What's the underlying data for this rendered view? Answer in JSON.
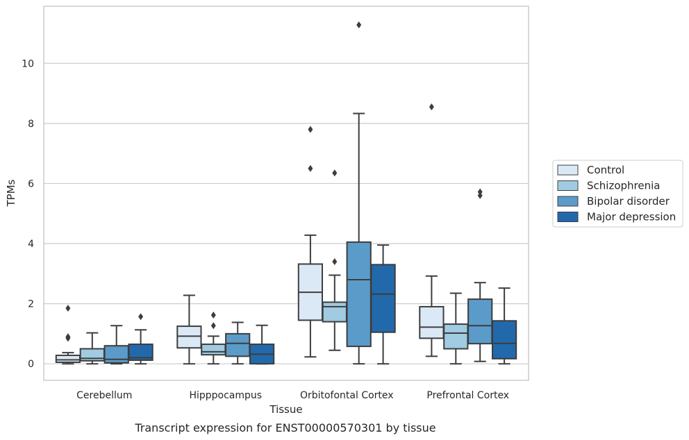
{
  "chart_data": {
    "type": "box",
    "title": "",
    "caption": "Transcript expression for ENST00000570301 by tissue",
    "xlabel": "Tissue",
    "ylabel": "TPMs",
    "ylim": [
      -0.55,
      11.9
    ],
    "yticks": [
      0,
      2,
      4,
      6,
      8,
      10
    ],
    "grid": "horizontal",
    "legend_position": "right",
    "categories": [
      "Cerebellum",
      "Hipppocampus",
      "Orbitofontal Cortex",
      "Prefrontal Cortex"
    ],
    "series": [
      {
        "name": "Control",
        "color": "#dbe9f6",
        "boxes": [
          {
            "whislo": 0.0,
            "q1": 0.05,
            "med": 0.13,
            "q3": 0.28,
            "whishi": 0.37,
            "fliers": [
              0.85,
              0.9,
              1.85
            ]
          },
          {
            "whislo": 0.0,
            "q1": 0.53,
            "med": 0.92,
            "q3": 1.25,
            "whishi": 2.28,
            "fliers": []
          },
          {
            "whislo": 0.23,
            "q1": 1.45,
            "med": 2.38,
            "q3": 3.32,
            "whishi": 4.28,
            "fliers": [
              6.5,
              7.8
            ]
          },
          {
            "whislo": 0.25,
            "q1": 0.85,
            "med": 1.22,
            "q3": 1.9,
            "whishi": 2.92,
            "fliers": [
              8.55
            ]
          }
        ]
      },
      {
        "name": "Schizophrenia",
        "color": "#a0cbe2",
        "boxes": [
          {
            "whislo": 0.0,
            "q1": 0.1,
            "med": 0.18,
            "q3": 0.5,
            "whishi": 1.03,
            "fliers": []
          },
          {
            "whislo": 0.0,
            "q1": 0.3,
            "med": 0.4,
            "q3": 0.65,
            "whishi": 0.92,
            "fliers": [
              1.27,
              1.62
            ]
          },
          {
            "whislo": 0.45,
            "q1": 1.4,
            "med": 1.9,
            "q3": 2.05,
            "whishi": 2.95,
            "fliers": [
              3.4,
              6.35
            ]
          },
          {
            "whislo": 0.0,
            "q1": 0.5,
            "med": 1.02,
            "q3": 1.32,
            "whishi": 2.35,
            "fliers": []
          }
        ]
      },
      {
        "name": "Bipolar disorder",
        "color": "#5b9bc9",
        "boxes": [
          {
            "whislo": 0.0,
            "q1": 0.03,
            "med": 0.15,
            "q3": 0.6,
            "whishi": 1.27,
            "fliers": []
          },
          {
            "whislo": 0.0,
            "q1": 0.25,
            "med": 0.68,
            "q3": 1.0,
            "whishi": 1.38,
            "fliers": []
          },
          {
            "whislo": 0.0,
            "q1": 0.58,
            "med": 2.8,
            "q3": 4.05,
            "whishi": 8.33,
            "fliers": [
              11.28
            ]
          },
          {
            "whislo": 0.08,
            "q1": 0.67,
            "med": 1.27,
            "q3": 2.15,
            "whishi": 2.7,
            "fliers": [
              5.6,
              5.72
            ]
          }
        ]
      },
      {
        "name": "Major depression",
        "color": "#2269ac",
        "boxes": [
          {
            "whislo": 0.0,
            "q1": 0.12,
            "med": 0.2,
            "q3": 0.65,
            "whishi": 1.13,
            "fliers": [
              1.57
            ]
          },
          {
            "whislo": 0.0,
            "q1": 0.0,
            "med": 0.32,
            "q3": 0.65,
            "whishi": 1.28,
            "fliers": []
          },
          {
            "whislo": 0.0,
            "q1": 1.05,
            "med": 2.32,
            "q3": 3.3,
            "whishi": 3.95,
            "fliers": []
          },
          {
            "whislo": 0.0,
            "q1": 0.17,
            "med": 0.68,
            "q3": 1.43,
            "whishi": 2.52,
            "fliers": []
          }
        ]
      }
    ]
  }
}
